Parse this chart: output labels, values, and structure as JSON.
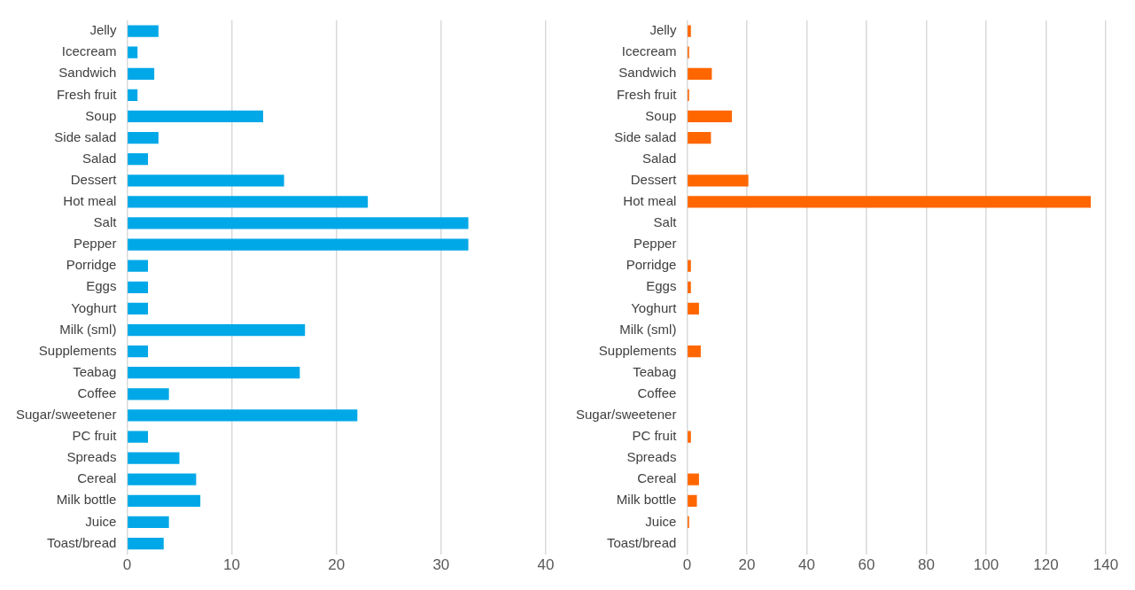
{
  "chart_data": [
    {
      "type": "bar",
      "orientation": "horizontal",
      "categories": [
        "Jelly",
        "Icecream",
        "Sandwich",
        "Fresh fruit",
        "Soup",
        "Side salad",
        "Salad",
        "Dessert",
        "Hot meal",
        "Salt",
        "Pepper",
        "Porridge",
        "Eggs",
        "Yoghurt",
        "Milk (sml)",
        "Supplements",
        "Teabag",
        "Coffee",
        "Sugar/sweetener",
        "PC fruit",
        "Spreads",
        "Cereal",
        "Milk bottle",
        "Juice",
        "Toast/bread"
      ],
      "values": [
        3,
        1,
        2.6,
        1,
        13,
        3,
        2,
        15,
        23,
        32.6,
        32.6,
        2,
        2,
        2,
        17,
        2,
        16.5,
        4,
        22,
        2,
        5,
        6.6,
        7,
        4,
        3.5
      ],
      "color": "#00a8e8",
      "xlim": [
        0,
        40
      ],
      "xticks": [
        0,
        10,
        20,
        30,
        40
      ],
      "grid": "x"
    },
    {
      "type": "bar",
      "orientation": "horizontal",
      "categories": [
        "Jelly",
        "Icecream",
        "Sandwich",
        "Fresh fruit",
        "Soup",
        "Side salad",
        "Salad",
        "Dessert",
        "Hot meal",
        "Salt",
        "Pepper",
        "Porridge",
        "Eggs",
        "Yoghurt",
        "Milk (sml)",
        "Supplements",
        "Teabag",
        "Coffee",
        "Sugar/sweetener",
        "PC fruit",
        "Spreads",
        "Cereal",
        "Milk bottle",
        "Juice",
        "Toast/bread"
      ],
      "values": [
        1.3,
        0.7,
        8.3,
        0.7,
        15,
        8,
        0,
        20.5,
        135,
        0,
        0,
        1.3,
        1.3,
        4,
        0,
        4.6,
        0,
        0,
        0,
        1.3,
        0,
        4,
        3.3,
        0.7,
        0
      ],
      "color": "#ff6600",
      "xlim": [
        0,
        140
      ],
      "xticks": [
        0,
        20,
        40,
        60,
        80,
        100,
        120,
        140
      ],
      "grid": "x"
    }
  ]
}
